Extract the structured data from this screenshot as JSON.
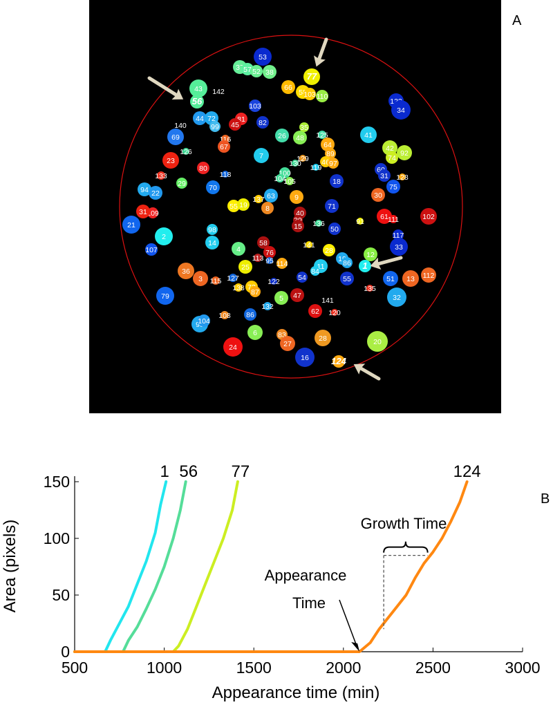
{
  "chart_data": [
    {
      "type": "image",
      "panel_label": "A",
      "highlighted_colonies": [
        "1",
        "56",
        "77",
        "124"
      ],
      "colonies": [
        {
          "id": "53",
          "color": "#0a2acf"
        },
        {
          "id": "37",
          "color": "#66ee99"
        },
        {
          "id": "57",
          "color": "#5cf0a0"
        },
        {
          "id": "52",
          "color": "#6af092"
        },
        {
          "id": "38",
          "color": "#72f08c"
        },
        {
          "id": "77",
          "color": "#f0f000"
        },
        {
          "id": "43",
          "color": "#55ee99"
        },
        {
          "id": "142",
          "color": ""
        },
        {
          "id": "56",
          "color": "#55ee99"
        },
        {
          "id": "66",
          "color": "#ffbb00"
        },
        {
          "id": "58",
          "color": "#ffdd00"
        },
        {
          "id": "103",
          "color": "#ffcc00"
        },
        {
          "id": "110",
          "color": "#99ee44"
        },
        {
          "id": "123",
          "color": "#0a2acf"
        },
        {
          "id": "34",
          "color": "#0a2acf"
        },
        {
          "id": "103",
          "color": "#1a44dd"
        },
        {
          "id": "44",
          "color": "#2299ee"
        },
        {
          "id": "72",
          "color": "#22aaee"
        },
        {
          "id": "99",
          "color": "#44bbee"
        },
        {
          "id": "81",
          "color": "#ee2222"
        },
        {
          "id": "45",
          "color": "#cc1111"
        },
        {
          "id": "82",
          "color": "#1133cc"
        },
        {
          "id": "140",
          "color": ""
        },
        {
          "id": "69",
          "color": "#2277ee"
        },
        {
          "id": "26",
          "color": "#44ddaa"
        },
        {
          "id": "48",
          "color": "#88ee55"
        },
        {
          "id": "35",
          "color": "#aaee33"
        },
        {
          "id": "125",
          "color": "#44ddaa"
        },
        {
          "id": "41",
          "color": "#22ccee"
        },
        {
          "id": "42",
          "color": "#bbee33"
        },
        {
          "id": "74",
          "color": "#ccee22"
        },
        {
          "id": "92",
          "color": "#bbee33"
        },
        {
          "id": "116",
          "color": "#ee6622"
        },
        {
          "id": "67",
          "color": "#ee5522"
        },
        {
          "id": "126",
          "color": "#44dd99"
        },
        {
          "id": "7",
          "color": "#22ccee"
        },
        {
          "id": "64",
          "color": "#ffaa11"
        },
        {
          "id": "89",
          "color": "#ffaa11"
        },
        {
          "id": "46",
          "color": "#ffcc00"
        },
        {
          "id": "97",
          "color": "#ffaa11"
        },
        {
          "id": "23",
          "color": "#ee2211"
        },
        {
          "id": "80",
          "color": "#ee2222"
        },
        {
          "id": "118",
          "color": "#1166dd"
        },
        {
          "id": "129",
          "color": "#ee9922"
        },
        {
          "id": "130",
          "color": "#44dd99"
        },
        {
          "id": "119",
          "color": "#22ccee"
        },
        {
          "id": "100",
          "color": "#44dd99"
        },
        {
          "id": "104",
          "color": "#44dd99"
        },
        {
          "id": "105",
          "color": "#88ee55"
        },
        {
          "id": "60",
          "color": "#1133cc"
        },
        {
          "id": "31",
          "color": "#1133cc"
        },
        {
          "id": "128",
          "color": "#ffaa11"
        },
        {
          "id": "133",
          "color": "#ee3322"
        },
        {
          "id": "29",
          "color": "#66ee66"
        },
        {
          "id": "70",
          "color": "#1177ee"
        },
        {
          "id": "18",
          "color": "#1133cc"
        },
        {
          "id": "75",
          "color": "#1155ee"
        },
        {
          "id": "94",
          "color": "#22aaee"
        },
        {
          "id": "22",
          "color": "#2299ee"
        },
        {
          "id": "63",
          "color": "#22aaee"
        },
        {
          "id": "137",
          "color": "#ffcc00"
        },
        {
          "id": "9",
          "color": "#ffaa11"
        },
        {
          "id": "30",
          "color": "#ee6622"
        },
        {
          "id": "55",
          "color": "#ffee00"
        },
        {
          "id": "19",
          "color": "#eeee00"
        },
        {
          "id": "8",
          "color": "#ee8822"
        },
        {
          "id": "71",
          "color": "#1133cc"
        },
        {
          "id": "40",
          "color": "#aa1111"
        },
        {
          "id": "109",
          "color": "#ee2222"
        },
        {
          "id": "31",
          "color": "#ee2211"
        },
        {
          "id": "39",
          "color": "#aa1111"
        },
        {
          "id": "15",
          "color": "#aa1111"
        },
        {
          "id": "136",
          "color": "#44dd99"
        },
        {
          "id": "61",
          "color": "#ee1111"
        },
        {
          "id": "111",
          "color": "#ee1111"
        },
        {
          "id": "102",
          "color": "#cc1111"
        },
        {
          "id": "21",
          "color": "#1166ee"
        },
        {
          "id": "50",
          "color": "#1133cc"
        },
        {
          "id": "91",
          "color": "#eeee00"
        },
        {
          "id": "98",
          "color": "#22ccee"
        },
        {
          "id": "2",
          "color": "#22eeee"
        },
        {
          "id": "117",
          "color": "#0a2acf"
        },
        {
          "id": "58",
          "color": "#aa1111"
        },
        {
          "id": "141",
          "color": "#ffdd00"
        },
        {
          "id": "28",
          "color": "#ffee00"
        },
        {
          "id": "14",
          "color": "#22ccee"
        },
        {
          "id": "4",
          "color": "#66ee88"
        },
        {
          "id": "76",
          "color": "#cc1111"
        },
        {
          "id": "107",
          "color": "#1155ee"
        },
        {
          "id": "113",
          "color": "#bb2222"
        },
        {
          "id": "12",
          "color": "#88ee44"
        },
        {
          "id": "33",
          "color": "#0a2acf"
        },
        {
          "id": "95",
          "color": "#1166dd"
        },
        {
          "id": "114",
          "color": "#ffaa11"
        },
        {
          "id": "25",
          "color": "#eeee00"
        },
        {
          "id": "11",
          "color": "#22ccee"
        },
        {
          "id": "19",
          "color": "#22aaee"
        },
        {
          "id": "86",
          "color": "#22aaee"
        },
        {
          "id": "36",
          "color": "#ee7722"
        },
        {
          "id": "3",
          "color": "#ee6622"
        },
        {
          "id": "115",
          "color": "#ee6622"
        },
        {
          "id": "127",
          "color": "#1166dd"
        },
        {
          "id": "138",
          "color": "#ffcc00"
        },
        {
          "id": "73",
          "color": "#ffcc00"
        },
        {
          "id": "122",
          "color": "#1133cc"
        },
        {
          "id": "87",
          "color": "#ffaa11"
        },
        {
          "id": "54",
          "color": "#1133cc"
        },
        {
          "id": "84",
          "color": "#22ccee"
        },
        {
          "id": "55",
          "color": "#1133cc"
        },
        {
          "id": "1",
          "color": "#22eeee"
        },
        {
          "id": "135",
          "color": "#ee3322"
        },
        {
          "id": "51",
          "color": "#1166ee"
        },
        {
          "id": "13",
          "color": "#ee6622"
        },
        {
          "id": "112",
          "color": "#ee6622"
        },
        {
          "id": "79",
          "color": "#1166ee"
        },
        {
          "id": "132",
          "color": "#22aaee"
        },
        {
          "id": "5",
          "color": "#88ee55"
        },
        {
          "id": "47",
          "color": "#bb1111"
        },
        {
          "id": "62",
          "color": "#dd1111"
        },
        {
          "id": "120",
          "color": "#ee3322"
        },
        {
          "id": "141",
          "color": ""
        },
        {
          "id": "32",
          "color": "#22aaee"
        },
        {
          "id": "108",
          "color": "#ee8822"
        },
        {
          "id": "86",
          "color": "#1166dd"
        },
        {
          "id": "93",
          "color": "#22aaee"
        },
        {
          "id": "104",
          "color": "#2299ee"
        },
        {
          "id": "6",
          "color": "#88ee55"
        },
        {
          "id": "83",
          "color": "#ee8822"
        },
        {
          "id": "27",
          "color": "#ee6622"
        },
        {
          "id": "28",
          "color": "#ee9922"
        },
        {
          "id": "20",
          "color": "#aaee44"
        },
        {
          "id": "24",
          "color": "#ee1111"
        },
        {
          "id": "16",
          "color": "#1133cc"
        },
        {
          "id": "124",
          "color": "#ffaa11"
        }
      ]
    },
    {
      "type": "line",
      "panel_label": "B",
      "xlabel": "Appearance time (min)",
      "ylabel": "Area (pixels)",
      "xlim": [
        500,
        3000
      ],
      "ylim": [
        0,
        150
      ],
      "xticks": [
        "500",
        "1000",
        "1500",
        "2000",
        "2500",
        "3000"
      ],
      "yticks": [
        "0",
        "50",
        "100",
        "150"
      ],
      "series": [
        {
          "name": "1",
          "color": "#22e6ee",
          "x": [
            500,
            670,
            700,
            750,
            800,
            850,
            900,
            950,
            980,
            1010
          ],
          "y": [
            0,
            0,
            10,
            25,
            40,
            60,
            80,
            105,
            130,
            150
          ]
        },
        {
          "name": "56",
          "color": "#55dd99",
          "x": [
            500,
            770,
            800,
            850,
            900,
            950,
            1000,
            1050,
            1090,
            1120
          ],
          "y": [
            0,
            0,
            10,
            22,
            38,
            55,
            75,
            100,
            125,
            150
          ]
        },
        {
          "name": "77",
          "color": "#ccee22",
          "x": [
            500,
            1050,
            1080,
            1130,
            1180,
            1230,
            1280,
            1330,
            1380,
            1410
          ],
          "y": [
            0,
            0,
            5,
            20,
            40,
            60,
            80,
            100,
            125,
            150
          ]
        },
        {
          "name": "124",
          "color": "#ff8811",
          "x": [
            500,
            2090,
            2150,
            2200,
            2250,
            2300,
            2350,
            2400,
            2450,
            2500,
            2550,
            2600,
            2650,
            2690
          ],
          "y": [
            0,
            0,
            8,
            20,
            30,
            40,
            50,
            65,
            78,
            88,
            100,
            115,
            132,
            150
          ]
        }
      ],
      "annotations": {
        "appearance_time_line1": "Appearance",
        "appearance_time_line2": "Time",
        "growth_time": "Growth Time"
      }
    }
  ],
  "colors": {
    "dish_outline": "#dd1111",
    "image_background": "#000000",
    "arrow": "#e0d8c0"
  }
}
